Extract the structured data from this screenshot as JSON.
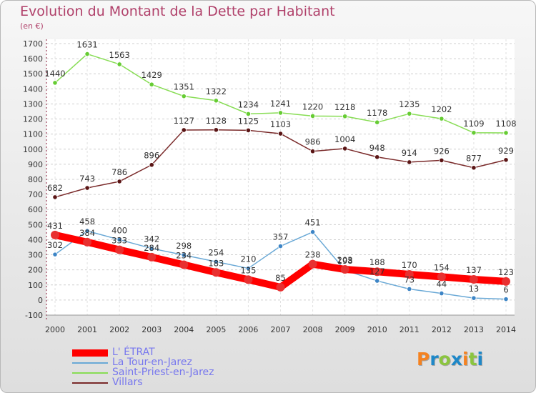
{
  "header": {
    "title": "Evolution du Montant de la Dette par Habitant",
    "subtitle": "(en €)"
  },
  "logo": {
    "text": "Proxiti",
    "colors": [
      "#f58220",
      "#1e88c8",
      "#8bc53f",
      "#1e88c8",
      "#f58220",
      "#8bc53f",
      "#1e88c8"
    ]
  },
  "chart_data": {
    "type": "line",
    "title": "Evolution du Montant de la Dette par Habitant",
    "subtitle": "(en €)",
    "x": [
      "2000",
      "2001",
      "2002",
      "2003",
      "2004",
      "2005",
      "2006",
      "2007",
      "2008",
      "2009",
      "2010",
      "2011",
      "2012",
      "2013",
      "2014"
    ],
    "ylim": [
      -100,
      1700
    ],
    "yticks": [
      -100,
      0,
      100,
      200,
      300,
      400,
      500,
      600,
      700,
      800,
      900,
      1000,
      1100,
      1200,
      1300,
      1400,
      1500,
      1600,
      1700
    ],
    "grid": "horizontal dashed",
    "legend_position": "bottom-left",
    "series": [
      {
        "name": "L' ÉTRAT",
        "color": "#ff0000",
        "marker": "#e83030",
        "values": [
          431,
          384,
          333,
          284,
          234,
          183,
          135,
          85,
          238,
          203,
          188,
          170,
          154,
          137,
          123
        ]
      },
      {
        "name": "La Tour-en-Jarez",
        "color": "#6aa9d6",
        "marker": "#3d85c6",
        "values": [
          302,
          458,
          400,
          342,
          298,
          254,
          210,
          357,
          451,
          198,
          127,
          73,
          44,
          13,
          6
        ]
      },
      {
        "name": "Saint-Priest-en-Jarez",
        "color": "#88dd55",
        "marker": "#66cc33",
        "values": [
          1440,
          1631,
          1563,
          1429,
          1351,
          1322,
          1234,
          1241,
          1220,
          1218,
          1178,
          1235,
          1202,
          1109,
          1108
        ]
      },
      {
        "name": "Villars",
        "color": "#7a2a2a",
        "marker": "#5a1515",
        "values": [
          682,
          743,
          786,
          896,
          1127,
          1128,
          1125,
          1103,
          986,
          1004,
          948,
          914,
          926,
          877,
          929
        ]
      }
    ]
  }
}
